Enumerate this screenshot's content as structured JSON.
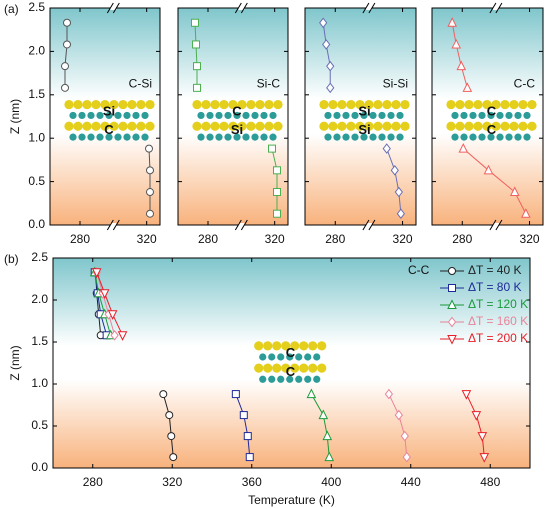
{
  "chart_data": [
    {
      "type": "line",
      "panel_label": "(a)",
      "ylabel": "Z (nm)",
      "annotation": "C-Si",
      "layer_labels": [
        "Si",
        "C"
      ],
      "xlim": [
        262,
        328
      ],
      "ylim": [
        0,
        2.5
      ],
      "xticks": [
        280,
        320
      ],
      "yticks": [
        {
          "value": 0,
          "label": "0.0"
        },
        {
          "value": 0.5,
          "label": "0.5"
        },
        {
          "value": 1,
          "label": "1.0"
        },
        {
          "value": 1.5,
          "label": "1.5"
        },
        {
          "value": 2,
          "label": "2.0"
        },
        {
          "value": 2.5,
          "label": "2.5"
        }
      ],
      "broken_x_axis": true,
      "series": [
        {
          "color": "#555555",
          "marker": "circle",
          "x": [
            272.2,
            272.2,
            271,
            271,
            null,
            321.4,
            322,
            322,
            322
          ],
          "values": [
            2.33,
            2.08,
            1.83,
            1.58,
            null,
            0.88,
            0.63,
            0.38,
            0.13
          ]
        }
      ]
    },
    {
      "type": "line",
      "annotation": "Si-C",
      "layer_labels": [
        "C",
        "Si"
      ],
      "sharey": true,
      "xlim": [
        262,
        328
      ],
      "ylim": [
        0,
        2.5
      ],
      "xticks": [
        280,
        320
      ],
      "broken_x_axis": true,
      "series": [
        {
          "color": "#4caf50",
          "marker": "square",
          "x": [
            272.2,
            272.8,
            273.4,
            273.4,
            null,
            318.4,
            321.4,
            321.4,
            321.4
          ],
          "values": [
            2.33,
            2.08,
            1.83,
            1.58,
            null,
            0.88,
            0.63,
            0.38,
            0.13
          ]
        }
      ]
    },
    {
      "type": "line",
      "annotation": "Si-Si",
      "layer_labels": [
        "Si",
        "Si"
      ],
      "sharey": true,
      "xlim": [
        262,
        328
      ],
      "ylim": [
        0,
        2.5
      ],
      "xticks": [
        280,
        320
      ],
      "broken_x_axis": true,
      "series": [
        {
          "color": "#6a6fb5",
          "marker": "diamond",
          "x": [
            272.8,
            274.6,
            277,
            277,
            null,
            310.6,
            315.4,
            317.8,
            319
          ],
          "values": [
            2.33,
            2.08,
            1.83,
            1.58,
            null,
            0.88,
            0.63,
            0.38,
            0.13
          ]
        }
      ]
    },
    {
      "type": "line",
      "annotation": "C-C",
      "layer_labels": [
        "C",
        "C"
      ],
      "sharey": true,
      "xlim": [
        262,
        328
      ],
      "ylim": [
        0,
        2.5
      ],
      "xticks": [
        280,
        320
      ],
      "broken_x_axis": true,
      "series": [
        {
          "color": "#f06060",
          "marker": "triangle-up",
          "x": [
            274,
            276.4,
            279.4,
            283,
            null,
            280.6,
            295.6,
            311.2,
            317.8
          ],
          "values": [
            2.33,
            2.08,
            1.83,
            1.58,
            null,
            0.88,
            0.63,
            0.38,
            0.13
          ]
        }
      ]
    },
    {
      "type": "line",
      "panel_label": "(b)",
      "ylabel": "Z (nm)",
      "xlabel": "Temperature (K)",
      "annotation": "C-C",
      "layer_labels": [
        "C",
        "C"
      ],
      "xlim": [
        260,
        500
      ],
      "ylim": [
        0,
        2.5
      ],
      "xticks": [
        280,
        320,
        360,
        400,
        440,
        480
      ],
      "yticks": [
        {
          "value": 0,
          "label": "0.0"
        },
        {
          "value": 0.5,
          "label": "0.5"
        },
        {
          "value": 1,
          "label": "1.0"
        },
        {
          "value": 1.5,
          "label": "1.5"
        },
        {
          "value": 2,
          "label": "2.0"
        },
        {
          "value": 2.5,
          "label": "2.5"
        }
      ],
      "series": [
        {
          "name": "ΔT = 40 K",
          "color": "#222222",
          "marker": "circle",
          "x": [
            281.5,
            282,
            283,
            284,
            null,
            315.5,
            318.5,
            319.5,
            320.5
          ],
          "values": [
            2.33,
            2.08,
            1.83,
            1.58,
            null,
            0.88,
            0.63,
            0.38,
            0.13
          ]
        },
        {
          "name": "ΔT = 80 K",
          "color": "#1f2a9a",
          "marker": "square",
          "x": [
            281,
            282.5,
            284,
            287,
            null,
            352,
            356,
            358,
            359
          ],
          "values": [
            2.33,
            2.08,
            1.83,
            1.58,
            null,
            0.88,
            0.63,
            0.38,
            0.13
          ]
        },
        {
          "name": "ΔT = 120 K",
          "color": "#1a9a3a",
          "marker": "triangle-up",
          "x": [
            281,
            283,
            286,
            289,
            null,
            390,
            396,
            398,
            399
          ],
          "values": [
            2.33,
            2.08,
            1.83,
            1.58,
            null,
            0.88,
            0.63,
            0.38,
            0.13
          ]
        },
        {
          "name": "ΔT = 160 K",
          "color": "#e8849a",
          "marker": "diamond",
          "x": [
            282,
            285,
            288,
            291,
            null,
            429,
            434,
            437,
            438
          ],
          "values": [
            2.33,
            2.08,
            1.83,
            1.58,
            null,
            0.88,
            0.63,
            0.38,
            0.13
          ]
        },
        {
          "name": "ΔT = 200 K",
          "color": "#e8202a",
          "marker": "triangle-down",
          "x": [
            282,
            286,
            290,
            295,
            null,
            468,
            473,
            476,
            477
          ],
          "values": [
            2.33,
            2.08,
            1.83,
            1.58,
            null,
            0.88,
            0.63,
            0.38,
            0.13
          ]
        }
      ]
    }
  ]
}
